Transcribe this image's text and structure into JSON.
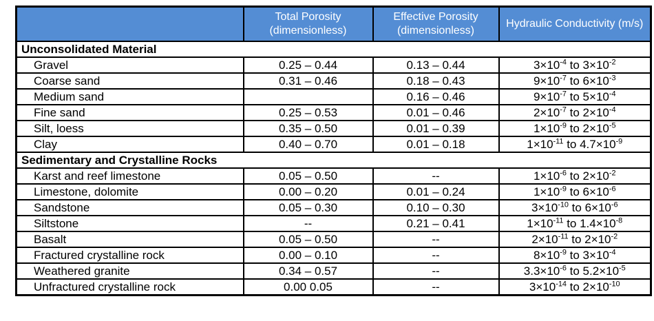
{
  "colors": {
    "header_background": "#548DD4",
    "header_text": "#FFFFFF",
    "border": "#000000",
    "body_text": "#000000"
  },
  "chart_data": {
    "type": "table",
    "title": "",
    "columns": [
      "",
      "Total Porosity (dimensionless)",
      "Effective Porosity (dimensionless)",
      "Hydraulic Conductivity (m/s)"
    ],
    "sections": [
      {
        "name": "Unconsolidated Material",
        "rows": [
          {
            "material": "Gravel",
            "total_porosity": "0.25 – 0.44",
            "effective_porosity": "0.13 – 0.44",
            "hydraulic_conductivity": "3×10^-4 to 3×10^-2"
          },
          {
            "material": "Coarse sand",
            "total_porosity": "0.31 – 0.46",
            "effective_porosity": "0.18 – 0.43",
            "hydraulic_conductivity": "9×10^-7 to 6×10^-3"
          },
          {
            "material": "Medium sand",
            "total_porosity": "",
            "effective_porosity": "0.16 – 0.46",
            "hydraulic_conductivity": "9×10^-7 to 5×10^-4"
          },
          {
            "material": "Fine sand",
            "total_porosity": "0.25 – 0.53",
            "effective_porosity": "0.01 – 0.46",
            "hydraulic_conductivity": "2×10^-7 to 2×10^-4"
          },
          {
            "material": "Silt, loess",
            "total_porosity": "0.35 – 0.50",
            "effective_porosity": "0.01 – 0.39",
            "hydraulic_conductivity": "1×10^-9 to 2×10^-5"
          },
          {
            "material": "Clay",
            "total_porosity": "0.40 – 0.70",
            "effective_porosity": "0.01 – 0.18",
            "hydraulic_conductivity": "1×10^-11 to 4.7×10^-9"
          }
        ]
      },
      {
        "name": "Sedimentary and Crystalline Rocks",
        "rows": [
          {
            "material": "Karst and reef limestone",
            "total_porosity": "0.05 – 0.50",
            "effective_porosity": "--",
            "hydraulic_conductivity": "1×10^-6 to 2×10^-2"
          },
          {
            "material": "Limestone, dolomite",
            "total_porosity": "0.00 – 0.20",
            "effective_porosity": "0.01 – 0.24",
            "hydraulic_conductivity": "1×10^-9 to 6×10^-6"
          },
          {
            "material": "Sandstone",
            "total_porosity": "0.05 – 0.30",
            "effective_porosity": "0.10 – 0.30",
            "hydraulic_conductivity": "3×10^-10 to 6×10^-6"
          },
          {
            "material": "Siltstone",
            "total_porosity": "--",
            "effective_porosity": "0.21 – 0.41",
            "hydraulic_conductivity": "1×10^-11 to 1.4×10^-8"
          },
          {
            "material": "Basalt",
            "total_porosity": "0.05 – 0.50",
            "effective_porosity": "--",
            "hydraulic_conductivity": "2×10^-11 to 2×10^-2"
          },
          {
            "material": "Fractured crystalline rock",
            "total_porosity": "0.00 – 0.10",
            "effective_porosity": "--",
            "hydraulic_conductivity": "8×10^-9 to 3×10^-4"
          },
          {
            "material": "Weathered granite",
            "total_porosity": "0.34 – 0.57",
            "effective_porosity": "--",
            "hydraulic_conductivity": "3.3×10^-6 to 5.2×10^-5"
          },
          {
            "material": "Unfractured crystalline rock",
            "total_porosity": "0.00 0.05",
            "effective_porosity": "--",
            "hydraulic_conductivity": "3×10^-14 to 2×10^-10"
          }
        ]
      }
    ]
  }
}
